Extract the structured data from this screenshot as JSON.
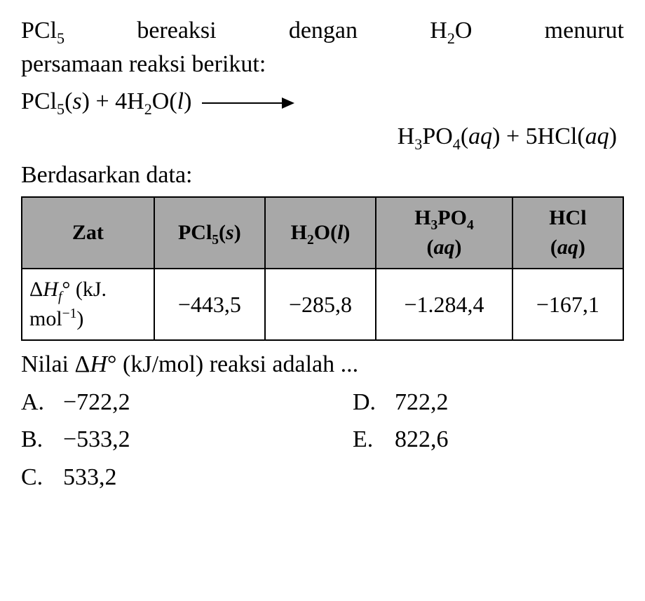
{
  "text": {
    "l1a": "PCl",
    "l1b": "bereaksi",
    "l1c": "dengan",
    "l1d": "H",
    "l1e": "O",
    "l1f": "menurut",
    "l2": "persamaan reaksi berikut:",
    "eq1a": "PCl",
    "eq1b": "(",
    "eq1c": "s",
    "eq1d": ") + 4H",
    "eq1e": "O(",
    "eq1f": "l",
    "eq1g": ")",
    "eq2a": "H",
    "eq2b": "PO",
    "eq2c": "(",
    "eq2d": "aq",
    "eq2e": ") + 5HCl(",
    "eq2f": "aq",
    "eq2g": ")",
    "based": "Berdasarkan data:",
    "question_a": "Nilai Δ",
    "question_b": "H",
    "question_c": "° (kJ/mol) reaksi adalah ..."
  },
  "sub": {
    "s5": "5",
    "s2": "2",
    "s3": "3",
    "s4": "4",
    "sf": "f"
  },
  "table": {
    "headers": {
      "zat": "Zat",
      "pcl": "PCl",
      "pcl_sub": "5",
      "pcl_state": "s",
      "h2o": "H",
      "h2o_sub": "2",
      "h2o_o": "O(",
      "h2o_state": "l",
      "h3po4_h": "H",
      "h3po4_s3": "3",
      "h3po4_po": "PO",
      "h3po4_s4": "4",
      "h3po4_state": "aq",
      "hcl": "HCl",
      "hcl_state": "aq"
    },
    "row": {
      "label_a": "Δ",
      "label_b": "H",
      "label_c": "° (kJ.",
      "label_d": "mol",
      "label_e": ")",
      "label_sup": "−1",
      "pcl": "−443,5",
      "h2o": "−285,8",
      "h3po4": "−1.284,4",
      "hcl": "−167,1"
    },
    "colors": {
      "header_bg": "#a8a8a8",
      "border": "#000000",
      "text": "#000000"
    }
  },
  "options": {
    "A": {
      "letter": "A.",
      "value": "−722,2"
    },
    "B": {
      "letter": "B.",
      "value": "−533,2"
    },
    "C": {
      "letter": "C.",
      "value": "533,2"
    },
    "D": {
      "letter": "D.",
      "value": "722,2"
    },
    "E": {
      "letter": "E.",
      "value": "822,6"
    }
  }
}
